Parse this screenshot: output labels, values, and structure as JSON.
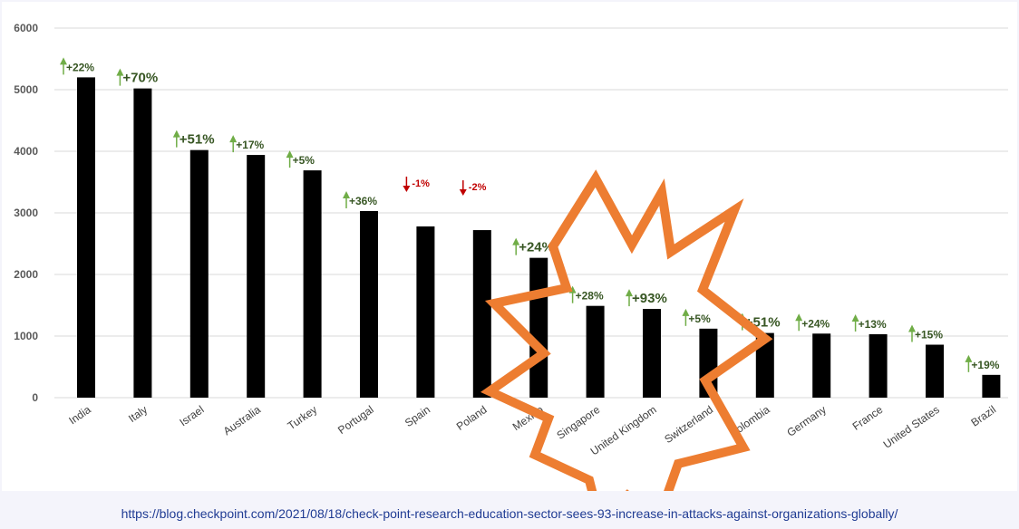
{
  "chart_data": {
    "type": "bar",
    "title": "",
    "xlabel": "",
    "ylabel": "",
    "ylim": [
      0,
      6000
    ],
    "yticks": [
      0,
      1000,
      2000,
      3000,
      4000,
      5000,
      6000
    ],
    "grid": true,
    "categories": [
      "India",
      "Italy",
      "Israel",
      "Australia",
      "Turkey",
      "Portugal",
      "Spain",
      "Poland",
      "Mexico",
      "Singapore",
      "United Kingdom",
      "Switzerland",
      "Colombia",
      "Germany",
      "France",
      "United States",
      "Brazil"
    ],
    "values": [
      5200,
      5020,
      4020,
      3940,
      3690,
      3030,
      2780,
      2720,
      2270,
      1490,
      1440,
      1120,
      1050,
      1040,
      1030,
      860,
      370
    ],
    "changes": [
      "+22%",
      "+70%",
      "+51%",
      "+17%",
      "+5%",
      "+36%",
      "-1%",
      "-2%",
      "+24%",
      "+28%",
      "+93%",
      "+5%",
      "+51%",
      "+24%",
      "+13%",
      "+15%",
      "+19%"
    ],
    "change_directions": [
      "up",
      "up",
      "up",
      "up",
      "up",
      "up",
      "down",
      "down",
      "up",
      "up",
      "up",
      "up",
      "up",
      "up",
      "up",
      "up",
      "up"
    ],
    "colors": {
      "bar": "#000000",
      "up_arrow": "#70ad47",
      "up_text": "#375623",
      "down": "#c00000",
      "starburst": "#ed7d31",
      "grid": "#d9d9d9"
    }
  },
  "source": {
    "url": "https://blog.checkpoint.com/2021/08/18/check-point-research-education-sector-sees-93-increase-in-attacks-against-organizations-globally/"
  }
}
